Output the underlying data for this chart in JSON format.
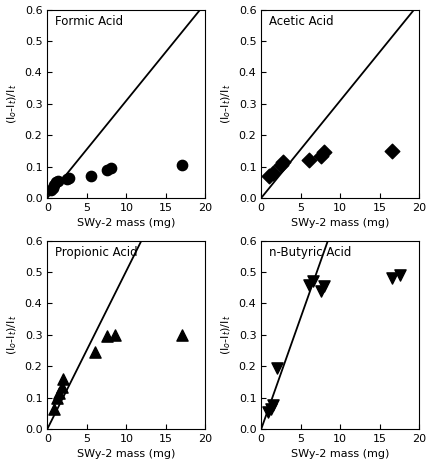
{
  "formic_acid": {
    "title": "Formic Acid",
    "x": [
      0.5,
      0.7,
      0.9,
      1.1,
      1.3,
      2.5,
      2.8,
      5.5,
      7.5,
      8.0,
      17.0
    ],
    "y": [
      0.025,
      0.03,
      0.04,
      0.05,
      0.055,
      0.06,
      0.065,
      0.07,
      0.09,
      0.095,
      0.105
    ],
    "line_x": [
      0.0,
      19.5
    ],
    "line_y": [
      0.0,
      0.605
    ],
    "marker": "o",
    "markersize": 55
  },
  "acetic_acid": {
    "title": "Acetic Acid",
    "x": [
      1.0,
      1.5,
      2.5,
      2.8,
      6.0,
      7.5,
      8.0,
      16.5
    ],
    "y": [
      0.07,
      0.08,
      0.105,
      0.115,
      0.12,
      0.135,
      0.145,
      0.15
    ],
    "line_x": [
      0.0,
      19.5
    ],
    "line_y": [
      0.0,
      0.605
    ],
    "marker": "D",
    "markersize": 55
  },
  "propionic_acid": {
    "title": "Propionic Acid",
    "x": [
      0.8,
      1.2,
      1.5,
      1.8,
      2.0,
      6.0,
      7.5,
      8.5,
      17.0
    ],
    "y": [
      0.065,
      0.1,
      0.115,
      0.135,
      0.16,
      0.245,
      0.295,
      0.3,
      0.3
    ],
    "line_x": [
      0.0,
      12.0
    ],
    "line_y": [
      0.0,
      0.605
    ],
    "marker": "^",
    "markersize": 65
  },
  "nbutyric_acid": {
    "title": "n-Butyric Acid",
    "x": [
      0.8,
      1.2,
      1.5,
      2.0,
      6.0,
      6.5,
      7.5,
      8.0,
      16.5,
      17.5
    ],
    "y": [
      0.055,
      0.065,
      0.075,
      0.195,
      0.46,
      0.47,
      0.44,
      0.455,
      0.48,
      0.49
    ],
    "line_x": [
      0.0,
      8.5
    ],
    "line_y": [
      0.0,
      0.605
    ],
    "marker": "v",
    "markersize": 65
  },
  "ylabel": "(I$_o$-I$_t$)/I$_t$",
  "xlabel": "SWy-2 mass (mg)",
  "ylim": [
    0,
    0.6
  ],
  "xlim": [
    0,
    20
  ],
  "yticks": [
    0.0,
    0.1,
    0.2,
    0.3,
    0.4,
    0.5,
    0.6
  ],
  "xticks": [
    0,
    5,
    10,
    15,
    20
  ],
  "color": "#000000",
  "background": "#ffffff",
  "linewidth": 1.3
}
